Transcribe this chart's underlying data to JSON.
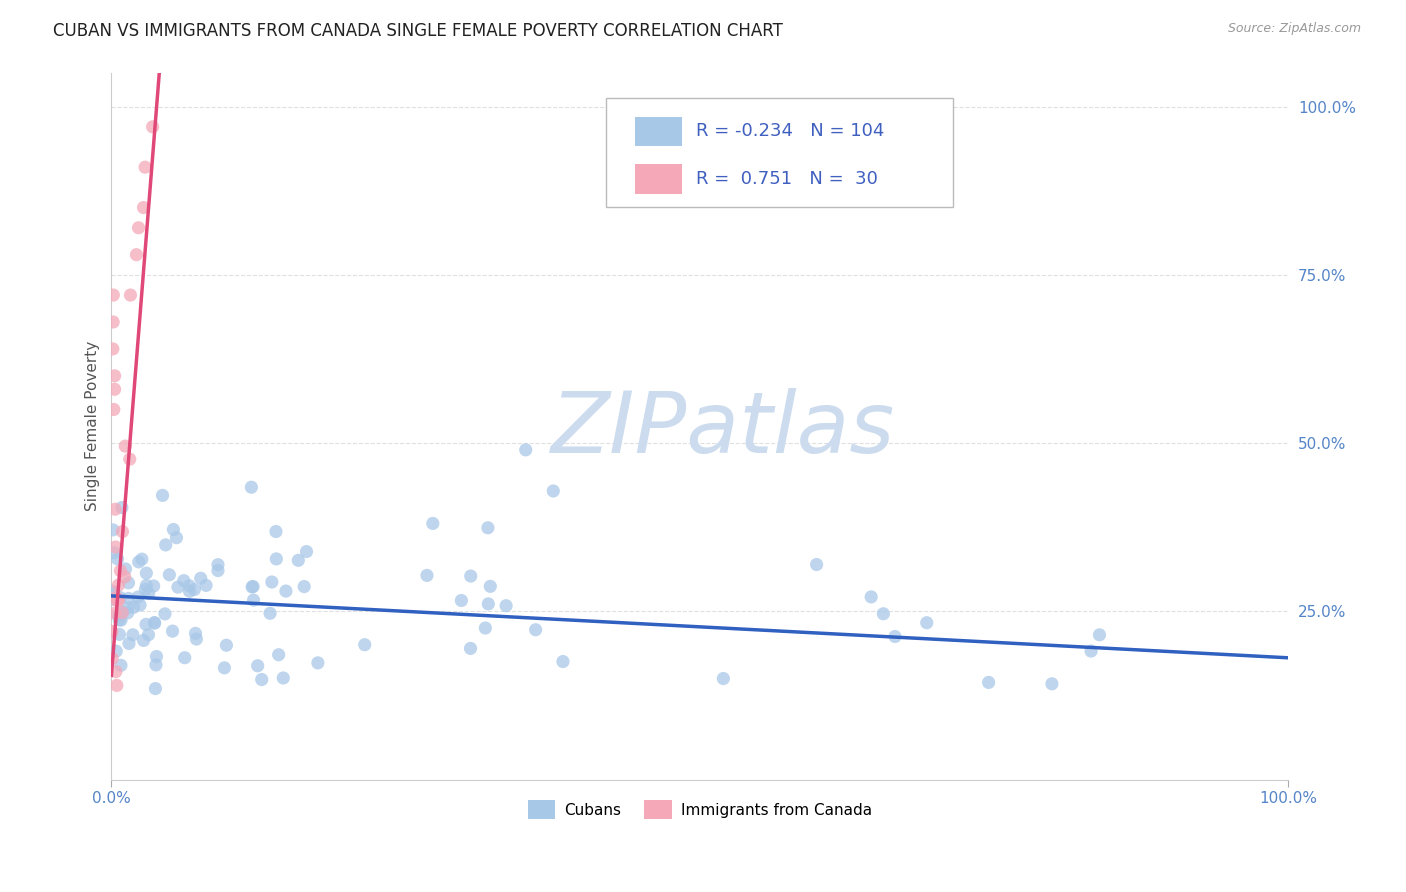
{
  "title": "CUBAN VS IMMIGRANTS FROM CANADA SINGLE FEMALE POVERTY CORRELATION CHART",
  "source": "Source: ZipAtlas.com",
  "ylabel": "Single Female Poverty",
  "R1": -0.234,
  "N1": 104,
  "R2": 0.751,
  "N2": 30,
  "legend_label1": "Cubans",
  "legend_label2": "Immigrants from Canada",
  "color_blue": "#a8c8e8",
  "color_pink": "#f4a8b8",
  "line_color_blue": "#3060c0",
  "line_color_pink": "#e04878",
  "watermark_color": "#dce8f5",
  "background_color": "#ffffff",
  "title_fontsize": 12,
  "tick_color": "#5585c8",
  "grid_color": "#e0e0e0",
  "ylabel_color": "#555555",
  "legend_text_color": "#4060c0",
  "blue_intercept": 0.273,
  "blue_slope": -0.092,
  "pink_intercept": 0.155,
  "pink_slope": 22.0
}
